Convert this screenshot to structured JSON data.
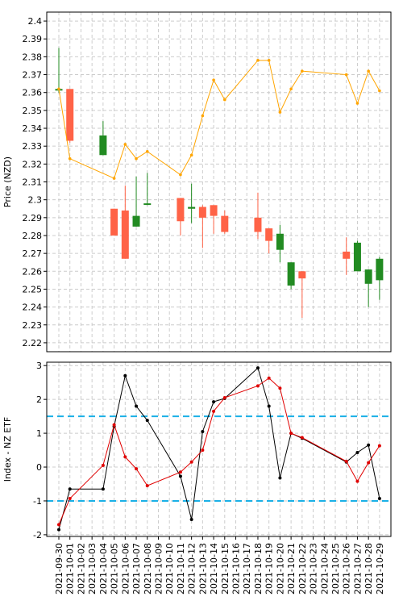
{
  "chart_data": [
    {
      "type": "candlestick",
      "panel": "top",
      "ylabel": "Price (NZD)",
      "ylim": [
        2.215,
        2.405
      ],
      "y_ticks": [
        2.22,
        2.23,
        2.24,
        2.25,
        2.26,
        2.27,
        2.28,
        2.29,
        2.3,
        2.31,
        2.32,
        2.33,
        2.34,
        2.35,
        2.36,
        2.37,
        2.38,
        2.39,
        2.4
      ],
      "y_tick_labels": [
        "2.22",
        "2.23",
        "2.24",
        "2.25",
        "2.26",
        "2.27",
        "2.28",
        "2.29",
        "2.3",
        "2.31",
        "2.32",
        "2.33",
        "2.34",
        "2.35",
        "2.36",
        "2.37",
        "2.38",
        "2.39",
        "2.4"
      ],
      "grid": true,
      "up_color": "#228b22",
      "down_color": "#ff6347",
      "line_color": "#ffa500",
      "candles": [
        {
          "date": "2021-09-30",
          "open": 2.362,
          "high": 2.385,
          "low": 2.36,
          "close": 2.362
        },
        {
          "date": "2021-10-01",
          "open": 2.362,
          "high": 2.362,
          "low": 2.332,
          "close": 2.333
        },
        {
          "date": "2021-10-04",
          "open": 2.325,
          "high": 2.344,
          "low": 2.325,
          "close": 2.336
        },
        {
          "date": "2021-10-05",
          "open": 2.295,
          "high": 2.295,
          "low": 2.28,
          "close": 2.28
        },
        {
          "date": "2021-10-06",
          "open": 2.294,
          "high": 2.308,
          "low": 2.267,
          "close": 2.267
        },
        {
          "date": "2021-10-07",
          "open": 2.285,
          "high": 2.313,
          "low": 2.285,
          "close": 2.291
        },
        {
          "date": "2021-10-08",
          "open": 2.298,
          "high": 2.315,
          "low": 2.297,
          "close": 2.298
        },
        {
          "date": "2021-10-11",
          "open": 2.301,
          "high": 2.301,
          "low": 2.28,
          "close": 2.288
        },
        {
          "date": "2021-10-12",
          "open": 2.295,
          "high": 2.309,
          "low": 2.287,
          "close": 2.296
        },
        {
          "date": "2021-10-13",
          "open": 2.296,
          "high": 2.297,
          "low": 2.273,
          "close": 2.29
        },
        {
          "date": "2021-10-14",
          "open": 2.297,
          "high": 2.297,
          "low": 2.281,
          "close": 2.291
        },
        {
          "date": "2021-10-15",
          "open": 2.291,
          "high": 2.294,
          "low": 2.281,
          "close": 2.282
        },
        {
          "date": "2021-10-18",
          "open": 2.29,
          "high": 2.304,
          "low": 2.278,
          "close": 2.282
        },
        {
          "date": "2021-10-19",
          "open": 2.284,
          "high": 2.284,
          "low": 2.27,
          "close": 2.277
        },
        {
          "date": "2021-10-20",
          "open": 2.272,
          "high": 2.286,
          "low": 2.265,
          "close": 2.281
        },
        {
          "date": "2021-10-21",
          "open": 2.252,
          "high": 2.265,
          "low": 2.25,
          "close": 2.265
        },
        {
          "date": "2021-10-22",
          "open": 2.26,
          "high": 2.26,
          "low": 2.234,
          "close": 2.256
        },
        {
          "date": "2021-10-26",
          "open": 2.271,
          "high": 2.279,
          "low": 2.258,
          "close": 2.267
        },
        {
          "date": "2021-10-27",
          "open": 2.26,
          "high": 2.277,
          "low": 2.26,
          "close": 2.276
        },
        {
          "date": "2021-10-28",
          "open": 2.253,
          "high": 2.261,
          "low": 2.24,
          "close": 2.261
        },
        {
          "date": "2021-10-29",
          "open": 2.255,
          "high": 2.268,
          "low": 2.244,
          "close": 2.267
        }
      ],
      "line": [
        {
          "date": "2021-09-30",
          "value": 2.362
        },
        {
          "date": "2021-10-01",
          "value": 2.323
        },
        {
          "date": "2021-10-05",
          "value": 2.312
        },
        {
          "date": "2021-10-06",
          "value": 2.331
        },
        {
          "date": "2021-10-07",
          "value": 2.323
        },
        {
          "date": "2021-10-08",
          "value": 2.327
        },
        {
          "date": "2021-10-11",
          "value": 2.314
        },
        {
          "date": "2021-10-12",
          "value": 2.325
        },
        {
          "date": "2021-10-13",
          "value": 2.347
        },
        {
          "date": "2021-10-14",
          "value": 2.367
        },
        {
          "date": "2021-10-15",
          "value": 2.356
        },
        {
          "date": "2021-10-18",
          "value": 2.378
        },
        {
          "date": "2021-10-19",
          "value": 2.378
        },
        {
          "date": "2021-10-20",
          "value": 2.349
        },
        {
          "date": "2021-10-21",
          "value": 2.362
        },
        {
          "date": "2021-10-22",
          "value": 2.372
        },
        {
          "date": "2021-10-26",
          "value": 2.37
        },
        {
          "date": "2021-10-27",
          "value": 2.354
        },
        {
          "date": "2021-10-28",
          "value": 2.372
        },
        {
          "date": "2021-10-29",
          "value": 2.361
        }
      ]
    },
    {
      "type": "line",
      "panel": "bottom",
      "ylabel": "Index - NZ ETF",
      "ylim": [
        -2.05,
        3.1
      ],
      "y_ticks": [
        -2,
        -1,
        0,
        1,
        2,
        3
      ],
      "y_tick_labels": [
        "-2",
        "-1",
        "0",
        "1",
        "2",
        "3"
      ],
      "grid": true,
      "hlines": [
        {
          "y": 1.5,
          "color": "#1ab0e6"
        },
        {
          "y": -1.0,
          "color": "#1ab0e6"
        }
      ],
      "series": [
        {
          "color": "#000000",
          "points": [
            {
              "date": "2021-09-30",
              "value": -1.85
            },
            {
              "date": "2021-10-01",
              "value": -0.65
            },
            {
              "date": "2021-10-04",
              "value": -0.65
            },
            {
              "date": "2021-10-05",
              "value": 1.2
            },
            {
              "date": "2021-10-06",
              "value": 2.7
            },
            {
              "date": "2021-10-07",
              "value": 1.8
            },
            {
              "date": "2021-10-08",
              "value": 1.38
            },
            {
              "date": "2021-10-11",
              "value": -0.27
            },
            {
              "date": "2021-10-12",
              "value": -1.55
            },
            {
              "date": "2021-10-13",
              "value": 1.05
            },
            {
              "date": "2021-10-14",
              "value": 1.93
            },
            {
              "date": "2021-10-15",
              "value": 2.03
            },
            {
              "date": "2021-10-18",
              "value": 2.93
            },
            {
              "date": "2021-10-19",
              "value": 1.8
            },
            {
              "date": "2021-10-20",
              "value": -0.32
            },
            {
              "date": "2021-10-21",
              "value": 1.0
            },
            {
              "date": "2021-10-22",
              "value": 0.85
            },
            {
              "date": "2021-10-26",
              "value": 0.15
            },
            {
              "date": "2021-10-27",
              "value": 0.43
            },
            {
              "date": "2021-10-28",
              "value": 0.65
            },
            {
              "date": "2021-10-29",
              "value": -0.93
            }
          ]
        },
        {
          "color": "#e00000",
          "points": [
            {
              "date": "2021-09-30",
              "value": -1.7
            },
            {
              "date": "2021-10-01",
              "value": -0.93
            },
            {
              "date": "2021-10-04",
              "value": 0.05
            },
            {
              "date": "2021-10-05",
              "value": 1.25
            },
            {
              "date": "2021-10-06",
              "value": 0.3
            },
            {
              "date": "2021-10-07",
              "value": -0.05
            },
            {
              "date": "2021-10-08",
              "value": -0.55
            },
            {
              "date": "2021-10-11",
              "value": -0.15
            },
            {
              "date": "2021-10-12",
              "value": 0.15
            },
            {
              "date": "2021-10-13",
              "value": 0.5
            },
            {
              "date": "2021-10-14",
              "value": 1.65
            },
            {
              "date": "2021-10-15",
              "value": 2.05
            },
            {
              "date": "2021-10-18",
              "value": 2.4
            },
            {
              "date": "2021-10-19",
              "value": 2.63
            },
            {
              "date": "2021-10-20",
              "value": 2.33
            },
            {
              "date": "2021-10-21",
              "value": 1.0
            },
            {
              "date": "2021-10-22",
              "value": 0.87
            },
            {
              "date": "2021-10-26",
              "value": 0.17
            },
            {
              "date": "2021-10-27",
              "value": -0.42
            },
            {
              "date": "2021-10-28",
              "value": 0.13
            },
            {
              "date": "2021-10-29",
              "value": 0.63
            }
          ]
        }
      ]
    }
  ],
  "x_axis": {
    "tick_labels": [
      "2021-09-30",
      "2021-10-01",
      "2021-10-02",
      "2021-10-03",
      "2021-10-04",
      "2021-10-05",
      "2021-10-06",
      "2021-10-07",
      "2021-10-08",
      "2021-10-09",
      "2021-10-10",
      "2021-10-11",
      "2021-10-12",
      "2021-10-13",
      "2021-10-14",
      "2021-10-15",
      "2021-10-16",
      "2021-10-17",
      "2021-10-18",
      "2021-10-19",
      "2021-10-20",
      "2021-10-21",
      "2021-10-22",
      "2021-10-23",
      "2021-10-24",
      "2021-10-25",
      "2021-10-26",
      "2021-10-27",
      "2021-10-28",
      "2021-10-29"
    ]
  }
}
